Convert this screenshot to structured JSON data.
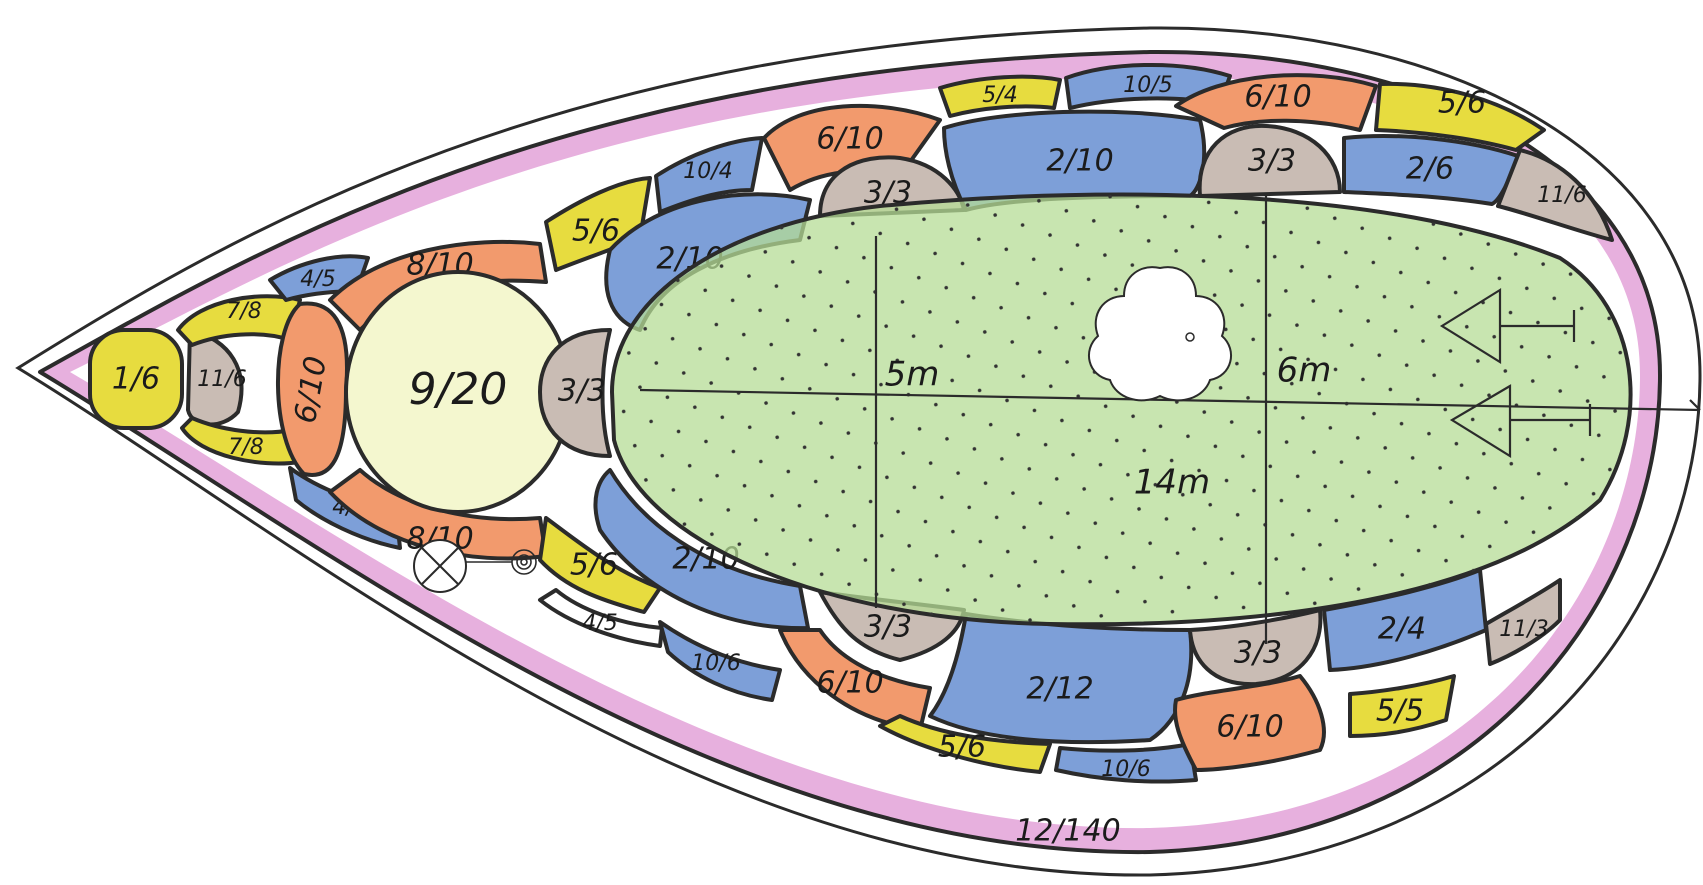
{
  "colors": {
    "border": "#d77cc8",
    "lawn": "#b6dc95",
    "blue": "#7d9fd8",
    "orange": "#f29a6d",
    "yellow": "#e7dc3f",
    "gray": "#c9bcb4",
    "cream": "#f4f7cf",
    "white": "#ffffff",
    "outline": "#2b2b2b"
  },
  "lawn": {
    "dimensions": {
      "width_left": "5m",
      "width_right": "6m",
      "length": "14m"
    },
    "fountain_icon": "quatrefoil-fountain-icon",
    "arrows_icon": "direction-arrows-icon"
  },
  "beds": [
    {
      "label": "1/6",
      "color": "yellow"
    },
    {
      "label": "11/6",
      "color": "gray"
    },
    {
      "label": "7/8",
      "color": "yellow"
    },
    {
      "label": "7/8",
      "color": "yellow"
    },
    {
      "label": "4/5",
      "color": "blue"
    },
    {
      "label": "4/5",
      "color": "blue"
    },
    {
      "label": "6/10",
      "color": "orange"
    },
    {
      "label": "8/10",
      "color": "orange"
    },
    {
      "label": "8/10",
      "color": "orange"
    },
    {
      "label": "9/20",
      "color": "cream"
    },
    {
      "label": "3/3",
      "color": "gray"
    },
    {
      "label": "5/6",
      "color": "yellow"
    },
    {
      "label": "5/6",
      "color": "yellow"
    },
    {
      "label": "10/4",
      "color": "blue"
    },
    {
      "label": "4/5",
      "color": "white"
    },
    {
      "label": "2/10",
      "color": "blue"
    },
    {
      "label": "2/10",
      "color": "blue"
    },
    {
      "label": "10/6",
      "color": "blue"
    },
    {
      "label": "6/10",
      "color": "orange"
    },
    {
      "label": "3/3",
      "color": "gray"
    },
    {
      "label": "5/4",
      "color": "yellow"
    },
    {
      "label": "10/5",
      "color": "blue"
    },
    {
      "label": "2/10",
      "color": "blue"
    },
    {
      "label": "6/10",
      "color": "orange"
    },
    {
      "label": "3/3",
      "color": "gray"
    },
    {
      "label": "5/6",
      "color": "yellow"
    },
    {
      "label": "2/6",
      "color": "blue"
    },
    {
      "label": "11/6",
      "color": "gray"
    },
    {
      "label": "3/3",
      "color": "gray"
    },
    {
      "label": "6/10",
      "color": "orange"
    },
    {
      "label": "5/6",
      "color": "yellow"
    },
    {
      "label": "2/12",
      "color": "blue"
    },
    {
      "label": "10/6",
      "color": "blue"
    },
    {
      "label": "3/3",
      "color": "gray"
    },
    {
      "label": "6/10",
      "color": "orange"
    },
    {
      "label": "2/4",
      "color": "blue"
    },
    {
      "label": "5/5",
      "color": "yellow"
    },
    {
      "label": "11/3",
      "color": "gray"
    }
  ],
  "border_bed": {
    "label": "12/140",
    "color": "border"
  }
}
